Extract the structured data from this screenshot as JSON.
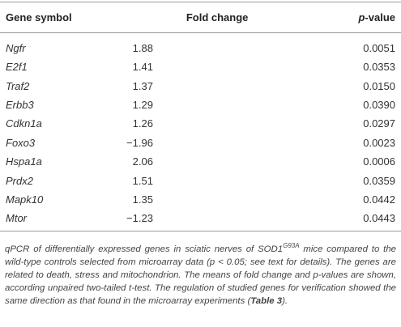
{
  "table": {
    "header": [
      "Gene symbol",
      "Fold change",
      {
        "italic": "p",
        "rest": "-value"
      }
    ],
    "rows": [
      [
        "Ngfr",
        "1.88",
        "0.0051"
      ],
      [
        "E2f1",
        "1.41",
        "0.0353"
      ],
      [
        "Traf2",
        "1.37",
        "0.0150"
      ],
      [
        "Erbb3",
        "1.29",
        "0.0390"
      ],
      [
        "Cdkn1a",
        "1.26",
        "0.0297"
      ],
      [
        "Foxo3",
        "−1.96",
        "0.0023"
      ],
      [
        "Hspa1a",
        "2.06",
        "0.0006"
      ],
      [
        "Prdx2",
        "1.51",
        "0.0359"
      ],
      [
        "Mapk10",
        "1.35",
        "0.0442"
      ],
      [
        "Mtor",
        "−1.23",
        "0.0443"
      ]
    ]
  },
  "caption": {
    "part1": "qPCR of differentially expressed genes in sciatic nerves of SOD1",
    "superscript": "G93A",
    "part2": " mice compared to the wild-type controls selected from microarray data (p < 0.05; see text for details). The genes are related to death, stress and mitochondrion. The means of fold change and p-values are shown, according unpaired two-tailed t-test. The regulation of studied genes for verification showed the same direction as that found in the microarray experiments (",
    "reference": "Table 3",
    "part3": ")."
  }
}
